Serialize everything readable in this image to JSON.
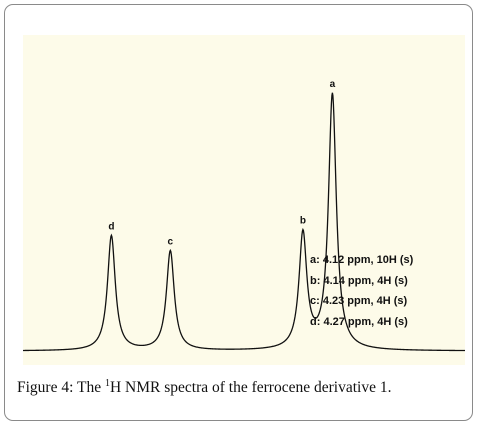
{
  "chart_data": {
    "type": "line",
    "title": "",
    "xlabel": "",
    "ylabel": "",
    "unit": "ppm",
    "xlim": [
      4.33,
      4.03
    ],
    "ylim": [
      0,
      10.5
    ],
    "grid": false,
    "peaks": [
      {
        "label": "a",
        "ppm": 4.12,
        "height": 10.0
      },
      {
        "label": "b",
        "ppm": 4.14,
        "height": 4.5
      },
      {
        "label": "c",
        "ppm": 4.23,
        "height": 3.9
      },
      {
        "label": "d",
        "ppm": 4.27,
        "height": 4.5
      }
    ],
    "legend": [
      {
        "label": "a:",
        "shift": "4.12 ppm,",
        "integration": "10H (s)"
      },
      {
        "label": "b:",
        "shift": "4.14 ppm,",
        "integration": " 4H (s)"
      },
      {
        "label": "c:",
        "shift": "4.23 ppm,",
        "integration": " 4H (s)"
      },
      {
        "label": "d:",
        "shift": "4.27 ppm,",
        "integration": " 4H (s)"
      }
    ]
  },
  "caption": {
    "prefix": "Figure 4:",
    "text_before_sup": " The ",
    "sup": "1",
    "text_after_sup": "H NMR spectra of the ferrocene derivative 1."
  }
}
